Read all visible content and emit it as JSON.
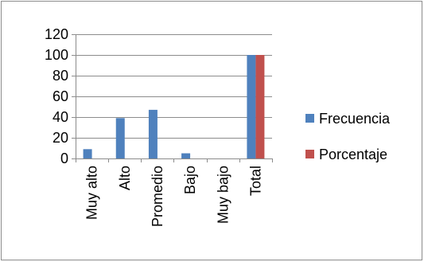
{
  "chart_data": {
    "type": "bar",
    "title": "",
    "xlabel": "",
    "ylabel": "",
    "categories": [
      "Muy alto",
      "Alto",
      "Promedio",
      "Bajo",
      "Muy bajo",
      "Total"
    ],
    "series": [
      {
        "name": "Frecuencia",
        "values": [
          9,
          39,
          47,
          5,
          0,
          100
        ],
        "color": "#4f81bd"
      },
      {
        "name": "Porcentaje",
        "values": [
          0,
          0,
          0,
          0,
          0,
          100
        ],
        "color": "#c0504d"
      }
    ],
    "ylim": [
      0,
      120
    ],
    "yticks": [
      0,
      20,
      40,
      60,
      80,
      100,
      120
    ],
    "grid": true,
    "legend_position": "right"
  }
}
